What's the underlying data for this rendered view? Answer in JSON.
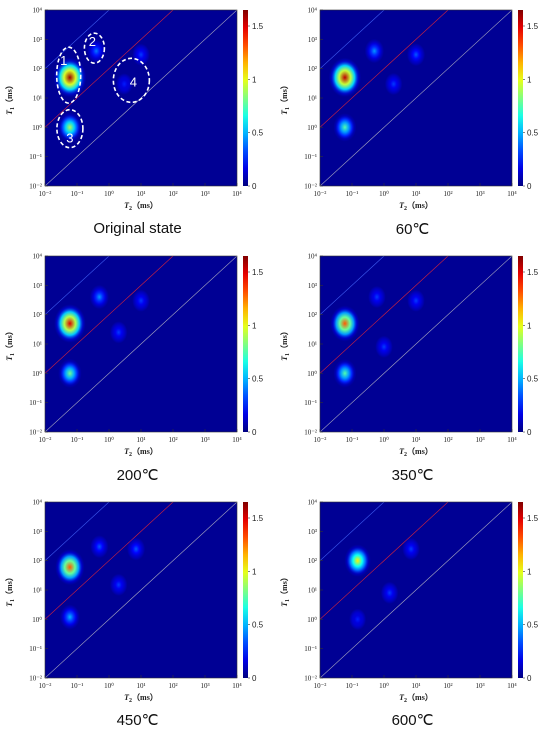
{
  "figure": {
    "axis_tick_labels": [
      "10⁻²",
      "10⁻¹",
      "10⁰",
      "10¹",
      "10²",
      "10³",
      "10⁴"
    ],
    "x_axis_label": {
      "main": "T",
      "sub": "2",
      "unit": "（ms）"
    },
    "y_axis_label": {
      "main": "T",
      "sub": "1",
      "unit": "（ms）"
    },
    "colorbar": {
      "min": 0,
      "max": 1.65,
      "ticks": [
        0,
        0.5,
        1,
        1.5
      ],
      "tick_labels": [
        "0",
        "0.5",
        "1",
        "1.5"
      ]
    },
    "diagonal_line_colors": {
      "red": "#ff2a2a",
      "light": "#c8c8c8",
      "blue": "#4a6cff"
    },
    "colormap": "jet"
  },
  "chart_data": [
    {
      "type": "heatmap",
      "caption": "Original state",
      "x_scale": "log",
      "y_scale": "log",
      "xlim": [
        0.01,
        10000
      ],
      "ylim": [
        0.01,
        10000
      ],
      "peaks": [
        {
          "t2": 0.06,
          "t1": 50,
          "amp": 1.6
        },
        {
          "t2": 0.06,
          "t1": 1.0,
          "amp": 0.9
        },
        {
          "t2": 0.4,
          "t1": 400,
          "amp": 0.4
        },
        {
          "t2": 10,
          "t1": 300,
          "amp": 0.3
        },
        {
          "t2": 3,
          "t1": 30,
          "amp": 0.25
        }
      ],
      "annotations": [
        {
          "label": "1",
          "t2": 0.055,
          "t1": 60
        },
        {
          "label": "2",
          "t2": 0.35,
          "t1": 500
        },
        {
          "label": "3",
          "t2": 0.06,
          "t1": 0.9
        },
        {
          "label": "4",
          "t2": 5,
          "t1": 40
        }
      ]
    },
    {
      "type": "heatmap",
      "caption": "60℃",
      "x_scale": "log",
      "y_scale": "log",
      "xlim": [
        0.01,
        10000
      ],
      "ylim": [
        0.01,
        10000
      ],
      "peaks": [
        {
          "t2": 0.06,
          "t1": 50,
          "amp": 1.55
        },
        {
          "t2": 0.06,
          "t1": 1.0,
          "amp": 0.75
        },
        {
          "t2": 0.5,
          "t1": 400,
          "amp": 0.45
        },
        {
          "t2": 10,
          "t1": 300,
          "amp": 0.35
        },
        {
          "t2": 2,
          "t1": 30,
          "amp": 0.3
        }
      ]
    },
    {
      "type": "heatmap",
      "caption": "200℃",
      "x_scale": "log",
      "y_scale": "log",
      "xlim": [
        0.01,
        10000
      ],
      "ylim": [
        0.01,
        10000
      ],
      "peaks": [
        {
          "t2": 0.06,
          "t1": 50,
          "amp": 1.5
        },
        {
          "t2": 0.06,
          "t1": 1.0,
          "amp": 0.8
        },
        {
          "t2": 0.5,
          "t1": 400,
          "amp": 0.45
        },
        {
          "t2": 10,
          "t1": 300,
          "amp": 0.3
        },
        {
          "t2": 2,
          "t1": 25,
          "amp": 0.3
        }
      ]
    },
    {
      "type": "heatmap",
      "caption": "350℃",
      "x_scale": "log",
      "y_scale": "log",
      "xlim": [
        0.01,
        10000
      ],
      "ylim": [
        0.01,
        10000
      ],
      "peaks": [
        {
          "t2": 0.06,
          "t1": 50,
          "amp": 1.3
        },
        {
          "t2": 0.06,
          "t1": 1.0,
          "amp": 0.75
        },
        {
          "t2": 0.6,
          "t1": 400,
          "amp": 0.3
        },
        {
          "t2": 10,
          "t1": 300,
          "amp": 0.3
        },
        {
          "t2": 1,
          "t1": 8,
          "amp": 0.3
        }
      ]
    },
    {
      "type": "heatmap",
      "caption": "450℃",
      "x_scale": "log",
      "y_scale": "log",
      "xlim": [
        0.01,
        10000
      ],
      "ylim": [
        0.01,
        10000
      ],
      "peaks": [
        {
          "t2": 0.06,
          "t1": 60,
          "amp": 1.3
        },
        {
          "t2": 0.06,
          "t1": 1.2,
          "amp": 0.5
        },
        {
          "t2": 0.5,
          "t1": 300,
          "amp": 0.35
        },
        {
          "t2": 7,
          "t1": 250,
          "amp": 0.35
        },
        {
          "t2": 2,
          "t1": 15,
          "amp": 0.3
        }
      ]
    },
    {
      "type": "heatmap",
      "caption": "600℃",
      "x_scale": "log",
      "y_scale": "log",
      "xlim": [
        0.01,
        10000
      ],
      "ylim": [
        0.01,
        10000
      ],
      "peaks": [
        {
          "t2": 0.15,
          "t1": 100,
          "amp": 1.05
        },
        {
          "t2": 0.15,
          "t1": 1.0,
          "amp": 0.25
        },
        {
          "t2": 7,
          "t1": 250,
          "amp": 0.3
        },
        {
          "t2": 1.5,
          "t1": 8,
          "amp": 0.3
        }
      ]
    }
  ]
}
